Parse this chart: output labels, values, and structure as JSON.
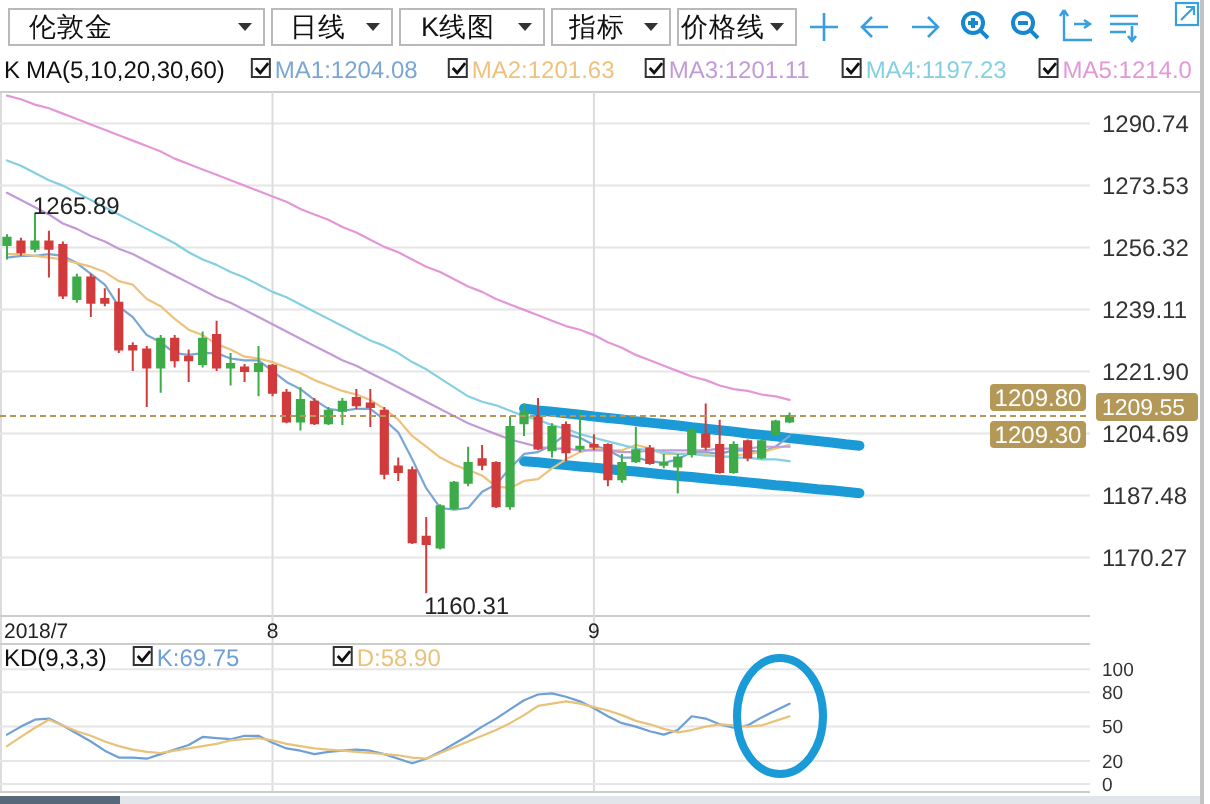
{
  "chart_data": [
    {
      "type": "candlestick",
      "title": "伦敦金",
      "subtitle": "日线",
      "legend_title": "MA(5,10,20,30,60)",
      "legend": "top",
      "grid": true,
      "annotations": [
        "K线图",
        "指标",
        "价格线",
        "K",
        "1209.80",
        "1209.30",
        "1265.89",
        "1160.31",
        "2018/7"
      ],
      "categories": [
        null,
        null,
        null,
        null,
        null,
        null,
        null,
        null,
        null,
        null,
        null,
        null,
        null,
        null,
        null,
        null,
        null,
        null,
        null,
        "8",
        null,
        null,
        null,
        null,
        null,
        null,
        null,
        null,
        null,
        null,
        null,
        null,
        null,
        null,
        null,
        null,
        null,
        null,
        null,
        null,
        null,
        null,
        "9",
        null,
        null,
        null,
        null,
        null,
        null,
        null,
        null,
        null,
        null,
        null,
        null,
        null,
        null,
        null,
        null,
        null,
        null,
        null,
        null,
        null,
        null,
        null,
        null,
        null,
        null,
        null,
        null,
        null,
        null,
        null,
        null,
        null,
        null,
        null
      ],
      "ohlc": [
        [
          1257,
          1260,
          1253,
          1259
        ],
        [
          1258,
          1259,
          1254,
          1255
        ],
        [
          1256,
          1265.89,
          1255,
          1258
        ],
        [
          1258,
          1261,
          1248,
          1256
        ],
        [
          1257,
          1258,
          1242,
          1243
        ],
        [
          1242,
          1249,
          1241,
          1248
        ],
        [
          1248,
          1249,
          1237,
          1241
        ],
        [
          1242,
          1245,
          1240,
          1241
        ],
        [
          1241,
          1245,
          1227,
          1228
        ],
        [
          1229,
          1230,
          1222,
          1228
        ],
        [
          1228,
          1229,
          1212,
          1223
        ],
        [
          1223,
          1232,
          1216,
          1231
        ],
        [
          1231,
          1232,
          1223,
          1225
        ],
        [
          1226,
          1228,
          1219,
          1225
        ],
        [
          1224,
          1233,
          1223,
          1231
        ],
        [
          1232,
          1236,
          1222,
          1223
        ],
        [
          1223,
          1227,
          1218,
          1224
        ],
        [
          1223,
          1224,
          1219,
          1222
        ],
        [
          1222,
          1229,
          1215,
          1224
        ],
        [
          1223.5,
          1224,
          1215,
          1216
        ],
        [
          1216,
          1217,
          1207.5,
          1208
        ],
        [
          1208,
          1217.5,
          1205.5,
          1214
        ],
        [
          1213.5,
          1214.5,
          1207,
          1207.5
        ],
        [
          1207.5,
          1212,
          1207,
          1211
        ],
        [
          1211,
          1214.5,
          1207,
          1213.5
        ],
        [
          1214.5,
          1217,
          1211.5,
          1212.5
        ],
        [
          1213,
          1217,
          1206.5,
          1212
        ],
        [
          1211,
          1212,
          1192,
          1193.5
        ],
        [
          1195.5,
          1198,
          1191.5,
          1194
        ],
        [
          1194.5,
          1195.5,
          1174,
          1174.5
        ],
        [
          1176,
          1181.5,
          1160.31,
          1174
        ],
        [
          1173,
          1185,
          1172.5,
          1184.5
        ],
        [
          1184,
          1191.5,
          1183.5,
          1191
        ],
        [
          1191,
          1201,
          1190,
          1196.5
        ],
        [
          1197.5,
          1201.5,
          1194.5,
          1196
        ],
        [
          1196.5,
          1197,
          1184,
          1184.5
        ],
        [
          1184.5,
          1209.5,
          1183.5,
          1206.5
        ],
        [
          1207.5,
          1213,
          1204,
          1210.5
        ],
        [
          1209.5,
          1214.5,
          1200,
          1200.5
        ],
        [
          1200,
          1207.5,
          1198,
          1206.5
        ],
        [
          1207,
          1208,
          1197,
          1199.5
        ],
        [
          1200.5,
          1211,
          1199.5,
          1201
        ],
        [
          1201.5,
          1204.5,
          1200,
          1201
        ],
        [
          1201.5,
          1202,
          1190,
          1192
        ],
        [
          1192,
          1199,
          1191,
          1196.5
        ],
        [
          1197,
          1206.5,
          1196.5,
          1200
        ],
        [
          1200.5,
          1201.5,
          1196,
          1196.5
        ],
        [
          1196,
          1199,
          1195,
          1196.5
        ],
        [
          1195.5,
          1199,
          1188,
          1198
        ],
        [
          1199,
          1206.5,
          1198,
          1205.5
        ],
        [
          1204.5,
          1213,
          1200,
          1201
        ],
        [
          1201.5,
          1208.5,
          1193.5,
          1194
        ],
        [
          1194,
          1202.5,
          1193.5,
          1201.5
        ],
        [
          1202.5,
          1203,
          1197,
          1198
        ],
        [
          1198,
          1203,
          1197.5,
          1202.5
        ],
        [
          1204.5,
          1208.5,
          1204,
          1208
        ],
        [
          1208,
          1210.5,
          1207.5,
          1209.55
        ],
        null,
        null,
        null,
        null,
        null,
        null,
        null,
        null,
        null,
        null,
        null,
        null,
        null,
        null,
        null,
        null,
        null,
        null,
        null,
        null,
        null
      ],
      "colors": [
        "#3dab48",
        "#d23b3b",
        "#3dab48",
        "#d23b3b",
        "#d23b3b",
        "#3dab48",
        "#d23b3b",
        "#d23b3b",
        "#d23b3b",
        "#d23b3b",
        "#d23b3b",
        "#3dab48",
        "#d23b3b",
        "#d23b3b",
        "#3dab48",
        "#d23b3b",
        "#3dab48",
        "#d23b3b",
        "#3dab48",
        "#d23b3b",
        "#d23b3b",
        "#3dab48",
        "#d23b3b",
        "#3dab48",
        "#3dab48",
        "#d23b3b",
        "#d23b3b",
        "#d23b3b",
        "#d23b3b",
        "#d23b3b",
        "#d23b3b",
        "#3dab48",
        "#3dab48",
        "#3dab48",
        "#d23b3b",
        "#d23b3b",
        "#3dab48",
        "#3dab48",
        "#d23b3b",
        "#3dab48",
        "#d23b3b",
        "#3dab48",
        "#d23b3b",
        "#d23b3b",
        "#3dab48",
        "#3dab48",
        "#d23b3b",
        "#3dab48",
        "#3dab48",
        "#3dab48",
        "#d23b3b",
        "#d23b3b",
        "#3dab48",
        "#d23b3b",
        "#3dab48",
        "#3dab48",
        "#3dab48",
        null,
        null,
        null,
        null,
        null,
        null,
        null,
        null,
        null,
        null,
        null,
        null,
        null,
        null,
        null,
        null,
        null,
        null,
        null,
        null,
        null
      ],
      "series": [
        {
          "type": "line",
          "name": "MA1:1204.08",
          "color": "#7aa6d6",
          "values": [
            1253.5,
            1254,
            1254,
            1254.5,
            1254,
            1252,
            1249,
            1246,
            1240,
            1237,
            1232,
            1230,
            1227,
            1226.5,
            1227,
            1227,
            1225.5,
            1225,
            1225,
            1222,
            1219,
            1217,
            1214,
            1211.5,
            1211,
            1211.5,
            1211.5,
            1208.5,
            1205,
            1197.5,
            1189.5,
            1184,
            1183.5,
            1184,
            1188.5,
            1190.5,
            1195,
            1199,
            1199.5,
            1201.5,
            1204.5,
            1203.5,
            1201.5,
            1200,
            1198,
            1198,
            1197,
            1196.5,
            1197.5,
            1199.5,
            1199.5,
            1199,
            1200,
            1200,
            1199.5,
            1201,
            1204,
            null,
            null,
            null,
            null,
            null,
            null,
            null,
            null,
            null,
            null,
            null,
            null,
            null,
            null,
            null,
            null,
            null,
            null,
            null,
            null,
            null
          ]
        },
        {
          "type": "line",
          "name": "MA2:1201.63",
          "color": "#eec27c",
          "values": [
            1254.5,
            1254.5,
            1254,
            1253.5,
            1253,
            1252,
            1251,
            1249.5,
            1247,
            1246,
            1242,
            1240,
            1236.5,
            1233.5,
            1232,
            1229.5,
            1228,
            1226,
            1225.5,
            1224.5,
            1223,
            1221.5,
            1219.5,
            1218,
            1216.5,
            1215.5,
            1214,
            1211.5,
            1208.5,
            1204,
            1201,
            1198,
            1196,
            1194.5,
            1193,
            1190,
            1189.5,
            1191.5,
            1192,
            1195,
            1197.5,
            1199.5,
            1200.5,
            1200,
            1200,
            1201.5,
            1200.5,
            1199,
            1199,
            1199,
            1199,
            1198,
            1198.5,
            1199,
            1199.5,
            1200.5,
            1201.5,
            null,
            null,
            null,
            null,
            null,
            null,
            null,
            null,
            null,
            null,
            null,
            null,
            null,
            null,
            null,
            null,
            null,
            null,
            null,
            null,
            null
          ]
        },
        {
          "type": "line",
          "name": "MA3:1201.11",
          "color": "#c39ad8",
          "values": [
            1271.5,
            1269.5,
            1267.5,
            1265.5,
            1263,
            1261.5,
            1259.5,
            1258,
            1256,
            1254.5,
            1252.5,
            1250.5,
            1248.5,
            1246.5,
            1244.5,
            1242.5,
            1241,
            1239,
            1237,
            1235,
            1233,
            1231,
            1229,
            1227,
            1225,
            1223.5,
            1221.5,
            1219.5,
            1217.5,
            1215.5,
            1213.5,
            1211.5,
            1209.5,
            1207.5,
            1206,
            1204.5,
            1203,
            1202,
            1201,
            1200.5,
            1200.5,
            1200,
            1200,
            1200,
            1199.5,
            1199.5,
            1200,
            1200,
            1200,
            1200,
            1200,
            1200.5,
            1200.5,
            1200.5,
            1201,
            1201,
            1201,
            null,
            null,
            null,
            null,
            null,
            null,
            null,
            null,
            null,
            null,
            null,
            null,
            null,
            null,
            null,
            null,
            null,
            null,
            null,
            null,
            null
          ]
        },
        {
          "type": "line",
          "name": "MA4:1197.23",
          "color": "#84cfe2",
          "values": [
            1280.5,
            1279,
            1277,
            1275,
            1273.5,
            1271.5,
            1269.5,
            1267.5,
            1265.5,
            1263.5,
            1261.5,
            1259.5,
            1257.5,
            1255,
            1253,
            1251.5,
            1249.5,
            1248,
            1246,
            1244,
            1242.5,
            1240.5,
            1238.5,
            1236.5,
            1234.5,
            1232.5,
            1230.5,
            1229,
            1227,
            1224.5,
            1222.5,
            1220,
            1217.5,
            1215,
            1213.5,
            1212.5,
            1211,
            1209.5,
            1208.5,
            1207,
            1206,
            1204.5,
            1203.5,
            1202.5,
            1201.5,
            1200.5,
            1200,
            1199.5,
            1199,
            1199,
            1198.5,
            1198.5,
            1198,
            1198,
            1197.5,
            1197.5,
            1197,
            null,
            null,
            null,
            null,
            null,
            null,
            null,
            null,
            null,
            null,
            null,
            null,
            null,
            null,
            null,
            null,
            null,
            null,
            null,
            null,
            null
          ]
        },
        {
          "type": "line",
          "name": "MA5:1214.0",
          "color": "#e497d8",
          "values": [
            1298.5,
            1297.5,
            1296,
            1295,
            1293.5,
            1292,
            1290.5,
            1289,
            1287.5,
            1286,
            1284.5,
            1283,
            1281,
            1279.5,
            1278,
            1276.5,
            1275,
            1273.5,
            1272,
            1270.5,
            1269,
            1267,
            1265.5,
            1264,
            1262,
            1260.5,
            1258.5,
            1256.5,
            1255,
            1253,
            1251,
            1249.5,
            1247.5,
            1245.5,
            1244,
            1242,
            1240.5,
            1239,
            1237.5,
            1236,
            1234.5,
            1233.5,
            1232,
            1230,
            1228.5,
            1226.5,
            1225,
            1223.5,
            1222,
            1220.5,
            1219.5,
            1218,
            1217,
            1216.5,
            1215.5,
            1215,
            1214,
            null,
            null,
            null,
            null,
            null,
            null,
            null,
            null,
            null,
            null,
            null,
            null,
            null,
            null,
            null,
            null,
            null,
            null,
            null,
            null,
            null
          ]
        },
        {
          "type": "line",
          "color": "#1a9ad6",
          "values": [
            null,
            null,
            null,
            null,
            null,
            null,
            null,
            null,
            null,
            null,
            null,
            null,
            null,
            null,
            null,
            null,
            null,
            null,
            null,
            null,
            null,
            null,
            null,
            null,
            null,
            null,
            null,
            null,
            null,
            null,
            null,
            null,
            null,
            null,
            null,
            null,
            null,
            1211.6,
            1211.1,
            1210.7,
            1210.3,
            1209.9,
            1209.4,
            1209,
            1208.6,
            1208.1,
            1207.7,
            1207.3,
            1206.9,
            1206.4,
            1206,
            1205.6,
            1205.2,
            1204.7,
            1204.3,
            1203.9,
            1203.4,
            1203,
            1202.6,
            1202.2,
            1201.7,
            1201.3,
            null,
            null,
            null,
            null,
            null,
            null,
            null,
            null,
            null,
            null,
            null,
            null,
            null,
            null,
            null,
            null
          ]
        },
        {
          "type": "line",
          "color": "#1a9ad6",
          "values": [
            null,
            null,
            null,
            null,
            null,
            null,
            null,
            null,
            null,
            null,
            null,
            null,
            null,
            null,
            null,
            null,
            null,
            null,
            null,
            null,
            null,
            null,
            null,
            null,
            null,
            null,
            null,
            null,
            null,
            null,
            null,
            null,
            null,
            null,
            null,
            null,
            null,
            1197,
            1196.7,
            1196.3,
            1195.9,
            1195.5,
            1195.2,
            1194.8,
            1194.4,
            1194.1,
            1193.7,
            1193.3,
            1192.9,
            1192.6,
            1192.2,
            1191.8,
            1191.5,
            1191.1,
            1190.7,
            1190.3,
            1190,
            1189.6,
            1189.2,
            1188.9,
            1188.5,
            1188.1,
            null,
            null,
            null,
            null,
            null,
            null,
            null,
            null,
            null,
            null,
            null,
            null,
            null,
            null,
            null,
            null
          ]
        }
      ],
      "ylim": [
        1154,
        1299.5
      ],
      "yticks": [
        1170.27,
        1187.48,
        1204.69,
        {
          "value": 1221.9,
          "label": "1221.90"
        },
        1239.11,
        1256.32,
        1273.53,
        1290.74
      ],
      "ref_lines": [
        {
          "axis": "y",
          "value": 1209.55,
          "label": "1209.55",
          "color": "#b39858",
          "line_style": "dashed"
        }
      ]
    },
    {
      "type": "line",
      "legend_title": "KD(9,3,3)",
      "legend": "top",
      "grid": "y",
      "tick_labels": "y",
      "categories": [
        null,
        null,
        null,
        null,
        null,
        null,
        null,
        null,
        null,
        null,
        null,
        null,
        null,
        null,
        null,
        null,
        null,
        null,
        null,
        null,
        null,
        null,
        null,
        null,
        null,
        null,
        null,
        null,
        null,
        null,
        null,
        null,
        null,
        null,
        null,
        null,
        null,
        null,
        null,
        null,
        null,
        null,
        null,
        null,
        null,
        null,
        null,
        null,
        null,
        null,
        null,
        null,
        null,
        null,
        null,
        null,
        null,
        null,
        null,
        null,
        null,
        null,
        null,
        null,
        null,
        null,
        null,
        null,
        null,
        null,
        null,
        null,
        null,
        null,
        null,
        null,
        null,
        null
      ],
      "series": [
        {
          "name": "K:69.75",
          "color": "#6e9fd6",
          "values": [
            43,
            50,
            56,
            57,
            51,
            44,
            37,
            29,
            23,
            23,
            22,
            26,
            30,
            34,
            41,
            40,
            39,
            42,
            42,
            36,
            31,
            29,
            26,
            28,
            29,
            30,
            29,
            26,
            22,
            18,
            22,
            28,
            35,
            42,
            50,
            57,
            65,
            73,
            78,
            79,
            76,
            72,
            66,
            59,
            53,
            50,
            46,
            43,
            47,
            59,
            57,
            52,
            49,
            51,
            58,
            64,
            70,
            null,
            null,
            null,
            null,
            null,
            null,
            null,
            null,
            null,
            null,
            null,
            null,
            null,
            null,
            null,
            null,
            null,
            null,
            null,
            null,
            null
          ]
        },
        {
          "name": "D:58.90",
          "color": "#e8c27a",
          "values": [
            33,
            41,
            49,
            56,
            51,
            46,
            42,
            37,
            33,
            30,
            28,
            27,
            29,
            31,
            33,
            35,
            38,
            39,
            40,
            38,
            35,
            33,
            31,
            30,
            29,
            28,
            27,
            26,
            25,
            23,
            22,
            27,
            32,
            37,
            42,
            47,
            53,
            60,
            68,
            70,
            72,
            70,
            67,
            64,
            60,
            55,
            52,
            48,
            45,
            47,
            50,
            52,
            51,
            50,
            51,
            55,
            59,
            null,
            null,
            null,
            null,
            null,
            null,
            null,
            null,
            null,
            null,
            null,
            null,
            null,
            null,
            null,
            null,
            null,
            null,
            null,
            null,
            null
          ]
        }
      ],
      "ylim": [
        -7,
        122
      ],
      "yticks": [
        0,
        20,
        50,
        80,
        100
      ]
    }
  ]
}
